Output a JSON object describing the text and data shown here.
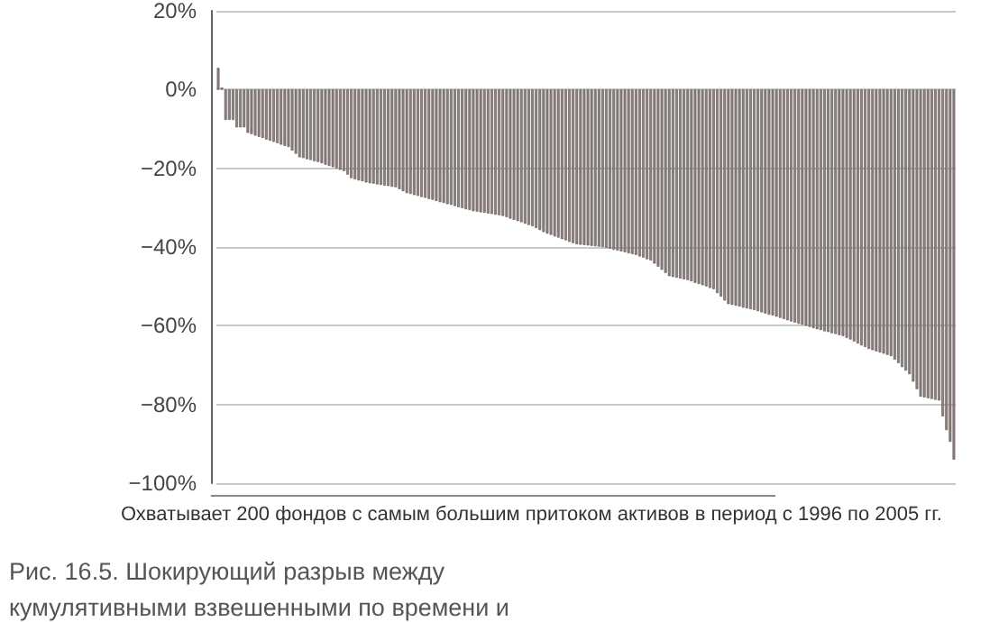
{
  "chart_data": {
    "type": "bar",
    "title": "Рис. 16.5. Шокирующий разрыв между кумулятивными взвешенными по времени и денежно-взвешенными доходностями, 1996–2005 гг.",
    "annotations": [
      "Охватывает 200 фондов с самым большим притоком активов в период с 1996 по 2005 гг."
    ],
    "categories": [
      null,
      null,
      null,
      null,
      null,
      null,
      null,
      null,
      null,
      null,
      null,
      null,
      null,
      null,
      null,
      null,
      null,
      null,
      null,
      null,
      null,
      null,
      null,
      null,
      null,
      null,
      null,
      null,
      null,
      null,
      null,
      null,
      null,
      null,
      null,
      null,
      null,
      null,
      null,
      null,
      null,
      null,
      null,
      null,
      null,
      null,
      null,
      null,
      null,
      null,
      null,
      null,
      null,
      null,
      null,
      null,
      null,
      null,
      null,
      null,
      null,
      null,
      null,
      null,
      null,
      null,
      null,
      null,
      null,
      null,
      null,
      null,
      null,
      null,
      null,
      null,
      null,
      null,
      null,
      null,
      null,
      null,
      null,
      null,
      null,
      null,
      null,
      null,
      null,
      null,
      null,
      null,
      null,
      null,
      null,
      null,
      null,
      null,
      null,
      null,
      null,
      null,
      null,
      null,
      null,
      null,
      null,
      null,
      null,
      null,
      null,
      null,
      null,
      null,
      null,
      null,
      null,
      null,
      null,
      null,
      null,
      null,
      null,
      null,
      null,
      null,
      null,
      null,
      null,
      null,
      null,
      null,
      null,
      null,
      null,
      null,
      null,
      null,
      null,
      null,
      null,
      null,
      null,
      null,
      null,
      null,
      null,
      null,
      null,
      null,
      null,
      null,
      null,
      null,
      null,
      null,
      null,
      null,
      null,
      null,
      null,
      null,
      null,
      null,
      null,
      null,
      null,
      null,
      null,
      null,
      null,
      null,
      null,
      null,
      null,
      null,
      null,
      null,
      null,
      null,
      null,
      null,
      null,
      null,
      null,
      null,
      null,
      null,
      null,
      null,
      null,
      null,
      null,
      null,
      null,
      null,
      null,
      null,
      null,
      null
    ],
    "values": [
      5.5,
      0.5,
      -7.7,
      -7.7,
      -7.7,
      -9.6,
      -9.6,
      -9.6,
      -11,
      -11.3,
      -11.7,
      -12,
      -12.3,
      -12.7,
      -13,
      -13.3,
      -13.6,
      -14,
      -14.3,
      -14.6,
      -15.5,
      -16.3,
      -17.2,
      -17.4,
      -17.7,
      -17.9,
      -18.2,
      -18.4,
      -18.7,
      -19.1,
      -19.4,
      -19.7,
      -20,
      -20.4,
      -20.7,
      -21.6,
      -22.5,
      -22.8,
      -23.1,
      -23.3,
      -23.6,
      -23.8,
      -23.9,
      -24.1,
      -24.2,
      -24.4,
      -24.5,
      -24.7,
      -24.8,
      -25.3,
      -25.8,
      -26.3,
      -26.5,
      -26.8,
      -27,
      -27.3,
      -27.5,
      -27.8,
      -28,
      -28.3,
      -28.6,
      -28.8,
      -29.1,
      -29.3,
      -29.6,
      -29.9,
      -30.1,
      -30.4,
      -30.6,
      -30.9,
      -31,
      -31.2,
      -31.3,
      -31.5,
      -31.6,
      -31.8,
      -31.9,
      -32.1,
      -32.4,
      -32.8,
      -33.1,
      -33.4,
      -33.7,
      -34.1,
      -34.4,
      -34.7,
      -35.2,
      -35.7,
      -36.2,
      -36.6,
      -36.9,
      -37.3,
      -37.6,
      -38,
      -38.3,
      -38.7,
      -39,
      -39.3,
      -39.4,
      -39.5,
      -39.6,
      -39.7,
      -39.8,
      -39.9,
      -40,
      -40.2,
      -40.4,
      -40.7,
      -40.9,
      -41.1,
      -41.3,
      -41.6,
      -41.8,
      -42,
      -42.4,
      -42.7,
      -43.1,
      -43.4,
      -44.2,
      -45,
      -45.8,
      -46.6,
      -47.4,
      -47.6,
      -47.8,
      -48,
      -48.2,
      -48.4,
      -48.7,
      -49.1,
      -49.4,
      -49.7,
      -50,
      -50.4,
      -50.7,
      -51.7,
      -52.6,
      -53.6,
      -54.5,
      -54.7,
      -54.9,
      -55.1,
      -55.4,
      -55.6,
      -55.8,
      -56,
      -56.3,
      -56.6,
      -56.9,
      -57.2,
      -57.4,
      -57.7,
      -58,
      -58.3,
      -58.6,
      -58.9,
      -59.2,
      -59.5,
      -59.7,
      -60,
      -60.3,
      -60.6,
      -60.9,
      -61.1,
      -61.4,
      -61.6,
      -61.9,
      -62.1,
      -62.4,
      -62.6,
      -63.1,
      -63.5,
      -64,
      -64.5,
      -65,
      -65.4,
      -65.9,
      -66.2,
      -66.5,
      -66.8,
      -67.1,
      -67.4,
      -67.7,
      -68.6,
      -69.5,
      -70.5,
      -71.4,
      -72.3,
      -74.2,
      -76.1,
      -78,
      -78.2,
      -78.4,
      -78.6,
      -78.8,
      -79,
      -83,
      -86.5,
      -89.5,
      -94
    ],
    "color": "#8c827e",
    "ylim": [
      -100,
      20
    ],
    "yticks": [
      {
        "value": 20,
        "label": "20%"
      },
      {
        "value": 0,
        "label": "0%"
      },
      {
        "value": -20,
        "label": "−20%"
      },
      {
        "value": -40,
        "label": "−40%"
      },
      {
        "value": -60,
        "label": "−60%"
      },
      {
        "value": -80,
        "label": "−80%"
      },
      {
        "value": -100,
        "label": "−100%"
      }
    ],
    "grid": "y"
  }
}
